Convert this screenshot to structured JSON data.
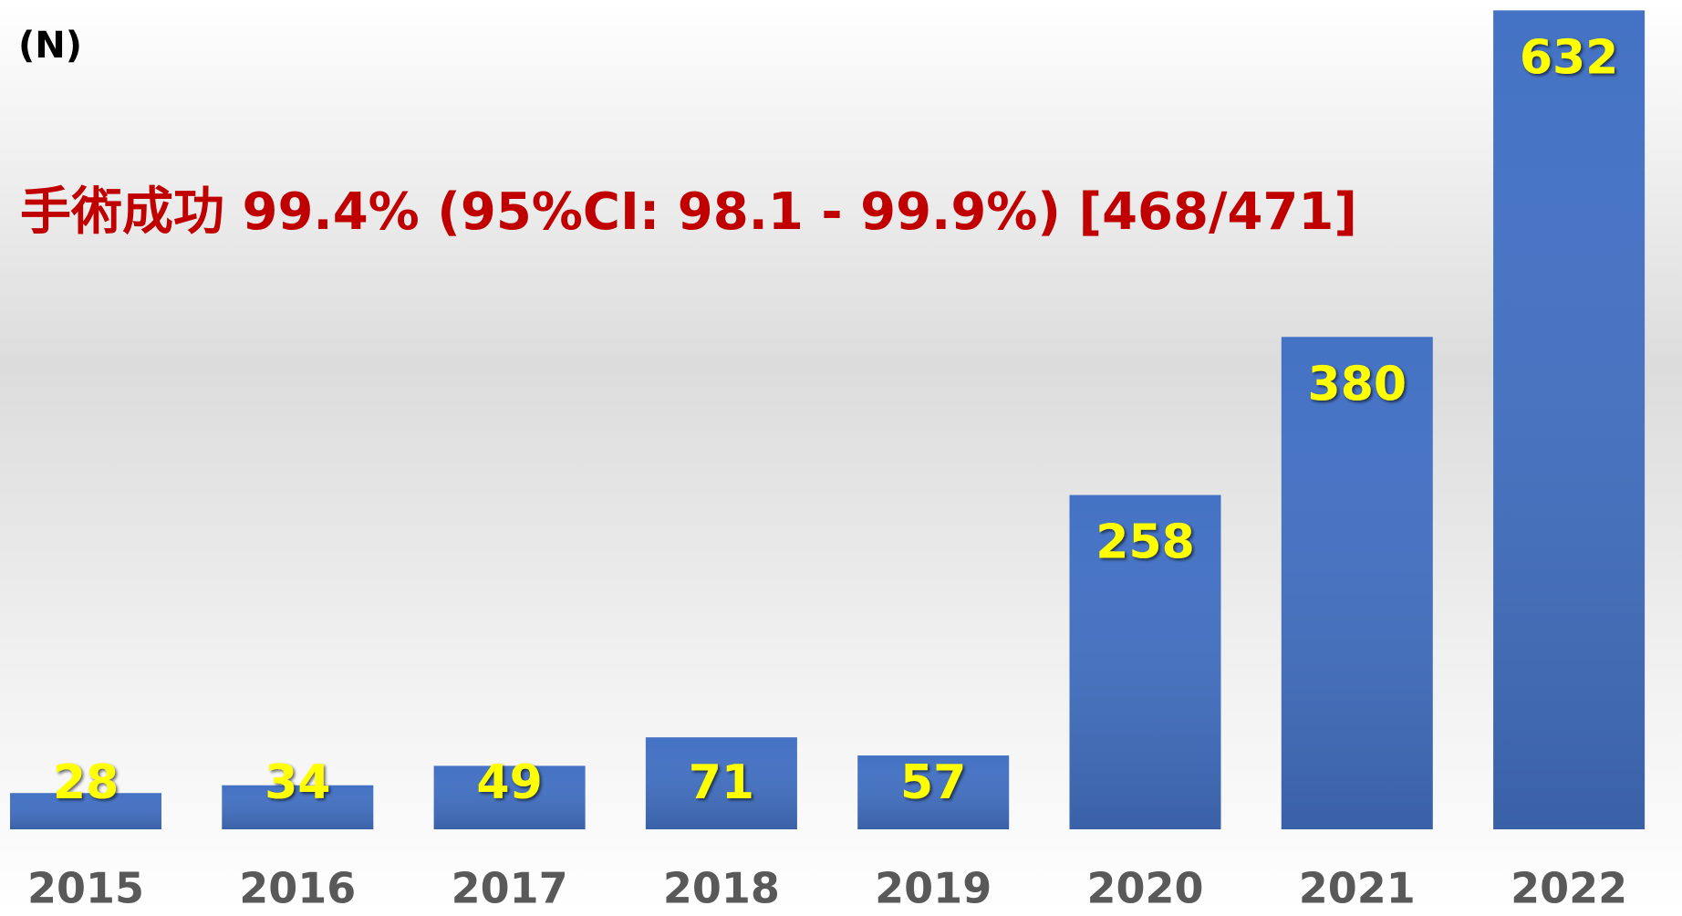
{
  "chart_data": {
    "type": "bar",
    "y_label": "(N)",
    "annotation": "手術成功 99.4% (95%CI: 98.1 - 99.9%) [468/471]",
    "categories": [
      "2015",
      "2016",
      "2017",
      "2018",
      "2019",
      "2020",
      "2021",
      "2022"
    ],
    "values": [
      28,
      34,
      49,
      71,
      57,
      258,
      380,
      632
    ],
    "color": "#4472c4",
    "label_color": "#ffff00",
    "annotation_color": "#c00000",
    "ylim": [
      0,
      640
    ]
  }
}
